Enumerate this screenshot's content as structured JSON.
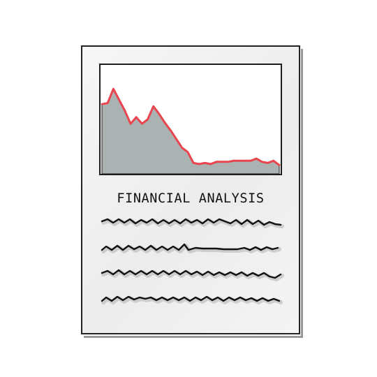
{
  "document": {
    "title": "FINANCIAL ANALYSIS"
  },
  "chart_data": {
    "type": "area",
    "x": [
      0,
      1,
      2,
      3,
      4,
      5,
      6,
      7,
      8,
      9,
      10,
      11,
      12,
      13,
      14,
      15,
      16,
      17,
      18,
      19,
      20,
      21,
      22,
      23,
      24,
      25,
      26,
      27,
      28,
      29,
      30,
      31
    ],
    "values": [
      64,
      65,
      78,
      68,
      58,
      46,
      52,
      46,
      50,
      62,
      55,
      47,
      40,
      32,
      24,
      20,
      10,
      9,
      10,
      9,
      11,
      11,
      11,
      12,
      12,
      12,
      12,
      14,
      11,
      10,
      12,
      8
    ],
    "ylim": [
      0,
      100
    ],
    "series_color": "#e8454f",
    "fill_color": "#aab2b2",
    "grid": false
  },
  "body_lines": {
    "count_note": "4 handwritten scribble lines (no legible text)"
  },
  "colors": {
    "outline": "#1d1d1d",
    "paper": "#f1f1f1",
    "scribble": "#111111",
    "scribble_shadow": "#b5b5b5"
  }
}
